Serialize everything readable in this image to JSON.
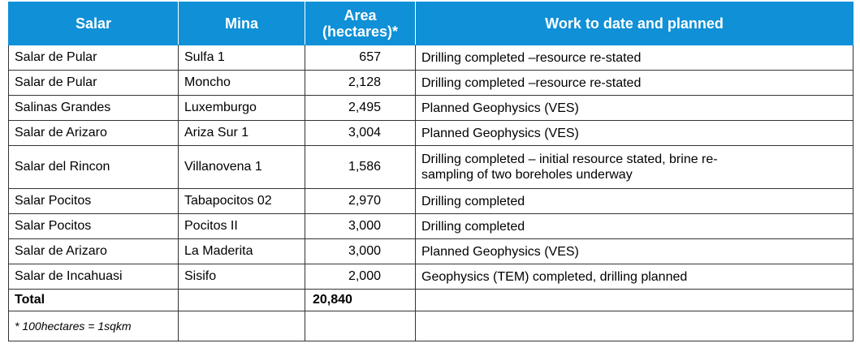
{
  "table": {
    "headers": {
      "salar": "Salar",
      "mina": "Mina",
      "area_line1": "Area",
      "area_line2": "(hectares)*",
      "work": "Work to date and planned"
    },
    "rows": [
      {
        "salar": "Salar de Pular",
        "mina": "Sulfa 1",
        "area": "657",
        "work": "Drilling completed –resource re-stated"
      },
      {
        "salar": "Salar de Pular",
        "mina": "Moncho",
        "area": "2,128",
        "work": "Drilling completed –resource re-stated"
      },
      {
        "salar": "Salinas Grandes",
        "mina": "Luxemburgo",
        "area": "2,495",
        "work": "Planned Geophysics (VES)"
      },
      {
        "salar": "Salar de Arizaro",
        "mina": "Ariza Sur 1",
        "area": "3,004",
        "work": "Planned Geophysics (VES)"
      },
      {
        "salar": "Salar del Rincon",
        "mina": "Villanovena 1",
        "area": "1,586",
        "work_line1": "Drilling completed – initial resource stated, brine re-",
        "work_line2": "sampling of two boreholes underway"
      },
      {
        "salar": "Salar Pocitos",
        "mina": "Tabapocitos 02",
        "area": "2,970",
        "work": "Drilling completed"
      },
      {
        "salar": "Salar Pocitos",
        "mina": "Pocitos II",
        "area": "3,000",
        "work": "Drilling completed"
      },
      {
        "salar": "Salar de Arizaro",
        "mina": "La Maderita",
        "area": "3,000",
        "work": "Planned Geophysics (VES)"
      },
      {
        "salar": "Salar de Incahuasi",
        "mina": "Sisifo",
        "area": "2,000",
        "work": "Geophysics (TEM) completed, drilling planned"
      }
    ],
    "total": {
      "label": "Total",
      "area": "20,840"
    },
    "footnote": "* 100hectares = 1sqkm"
  },
  "colors": {
    "header_bg": "#0f90d7",
    "header_text": "#ffffff",
    "border": "#333333"
  }
}
